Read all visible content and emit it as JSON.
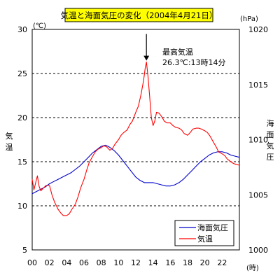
{
  "colors": {
    "title_bg": "#ffff00",
    "temperature": "#ff0000",
    "pressure": "#0000cc",
    "grid": "#000000"
  },
  "chart_data": {
    "type": "line",
    "title": "気温と海面気圧の変化（2004年4月21日）",
    "x_unit": "(時)",
    "xlim": [
      0,
      24
    ],
    "x_ticks": [
      "00",
      "02",
      "04",
      "06",
      "08",
      "10",
      "12",
      "14",
      "16",
      "18",
      "20",
      "22"
    ],
    "x_tick_values": [
      0,
      2,
      4,
      6,
      8,
      10,
      12,
      14,
      16,
      18,
      20,
      22
    ],
    "y_left": {
      "label": "気温",
      "unit": "(℃)",
      "lim": [
        5,
        30
      ],
      "ticks": [
        "5",
        "10",
        "15",
        "20",
        "25",
        "30"
      ],
      "tick_values": [
        5,
        10,
        15,
        20,
        25,
        30
      ]
    },
    "y_right": {
      "label": "海面気圧",
      "unit": "(hPa)",
      "lim": [
        1000,
        1020
      ],
      "ticks": [
        "1000",
        "1005",
        "1010",
        "1015",
        "1020"
      ],
      "tick_values": [
        1000,
        1005,
        1010,
        1015,
        1020
      ]
    },
    "grid": "horizontal dashed at 10, 15, 20, 25",
    "grid_values": [
      10,
      15,
      20,
      25
    ],
    "legend": {
      "position": "bottom-right",
      "entries": [
        "海面気圧",
        "気温"
      ]
    },
    "annotation": {
      "line1": "最高気温",
      "line2": "26.3℃:13時14分",
      "x": 13.23,
      "y": 26.3,
      "arrow": "down"
    },
    "series": [
      {
        "name": "海面気圧",
        "axis": "right",
        "x": [
          0,
          0.5,
          1,
          1.5,
          2,
          2.5,
          3,
          3.5,
          4,
          4.5,
          5,
          5.5,
          6,
          6.5,
          7,
          7.5,
          8,
          8.5,
          9,
          9.5,
          10,
          10.5,
          11,
          11.5,
          12,
          12.5,
          13,
          13.5,
          14,
          14.5,
          15,
          15.5,
          16,
          16.5,
          17,
          17.5,
          18,
          18.5,
          19,
          19.5,
          20,
          20.5,
          21,
          21.5,
          22,
          22.5,
          23,
          23.5,
          24
        ],
        "values": [
          1005.1,
          1005.3,
          1005.5,
          1005.7,
          1006.0,
          1006.2,
          1006.4,
          1006.6,
          1006.8,
          1007.0,
          1007.3,
          1007.6,
          1008.0,
          1008.4,
          1008.8,
          1009.1,
          1009.4,
          1009.5,
          1009.3,
          1009.0,
          1008.6,
          1008.1,
          1007.6,
          1007.1,
          1006.6,
          1006.3,
          1006.1,
          1006.1,
          1006.1,
          1006.0,
          1005.9,
          1005.8,
          1005.8,
          1005.9,
          1006.1,
          1006.4,
          1006.8,
          1007.2,
          1007.6,
          1008.0,
          1008.3,
          1008.6,
          1008.8,
          1008.9,
          1008.9,
          1008.8,
          1008.6,
          1008.5,
          1008.4
        ]
      },
      {
        "name": "気温",
        "axis": "left",
        "x": [
          0,
          0.2,
          0.4,
          0.6,
          0.8,
          1.0,
          1.3,
          1.6,
          2.0,
          2.3,
          2.6,
          3.0,
          3.3,
          3.6,
          4.0,
          4.3,
          4.6,
          5.0,
          5.3,
          5.6,
          6.0,
          6.3,
          6.6,
          7.0,
          7.3,
          7.6,
          8.0,
          8.3,
          8.6,
          9.0,
          9.3,
          9.6,
          10.0,
          10.3,
          10.6,
          11.0,
          11.3,
          11.6,
          12.0,
          12.3,
          12.6,
          12.9,
          13.1,
          13.23,
          13.4,
          13.6,
          13.8,
          14.0,
          14.2,
          14.4,
          14.7,
          15.0,
          15.3,
          15.6,
          16.0,
          16.3,
          16.6,
          17.0,
          17.3,
          17.6,
          18.0,
          18.3,
          18.6,
          19.0,
          19.3,
          19.6,
          20.0,
          20.3,
          20.6,
          21.0,
          21.3,
          21.6,
          22.0,
          22.3,
          22.6,
          23.0,
          23.3,
          23.6,
          24.0
        ],
        "values": [
          13.0,
          11.8,
          12.6,
          13.4,
          12.2,
          11.7,
          12.0,
          12.3,
          12.3,
          11.2,
          10.4,
          9.6,
          9.2,
          8.9,
          8.9,
          9.1,
          9.6,
          10.2,
          11.0,
          12.0,
          13.0,
          14.0,
          14.9,
          15.6,
          16.1,
          16.4,
          16.6,
          16.8,
          16.7,
          16.3,
          16.5,
          17.0,
          17.5,
          18.0,
          18.3,
          18.6,
          19.2,
          19.6,
          20.6,
          21.3,
          22.6,
          24.2,
          25.7,
          26.3,
          24.8,
          22.5,
          20.0,
          19.1,
          19.6,
          20.6,
          20.5,
          20.1,
          19.6,
          19.4,
          19.4,
          19.1,
          18.9,
          18.8,
          18.6,
          18.2,
          18.0,
          18.3,
          18.7,
          18.8,
          18.8,
          18.7,
          18.5,
          18.3,
          17.9,
          17.2,
          16.7,
          16.1,
          15.9,
          15.7,
          15.3,
          15.0,
          14.8,
          14.7,
          14.6
        ]
      }
    ]
  }
}
